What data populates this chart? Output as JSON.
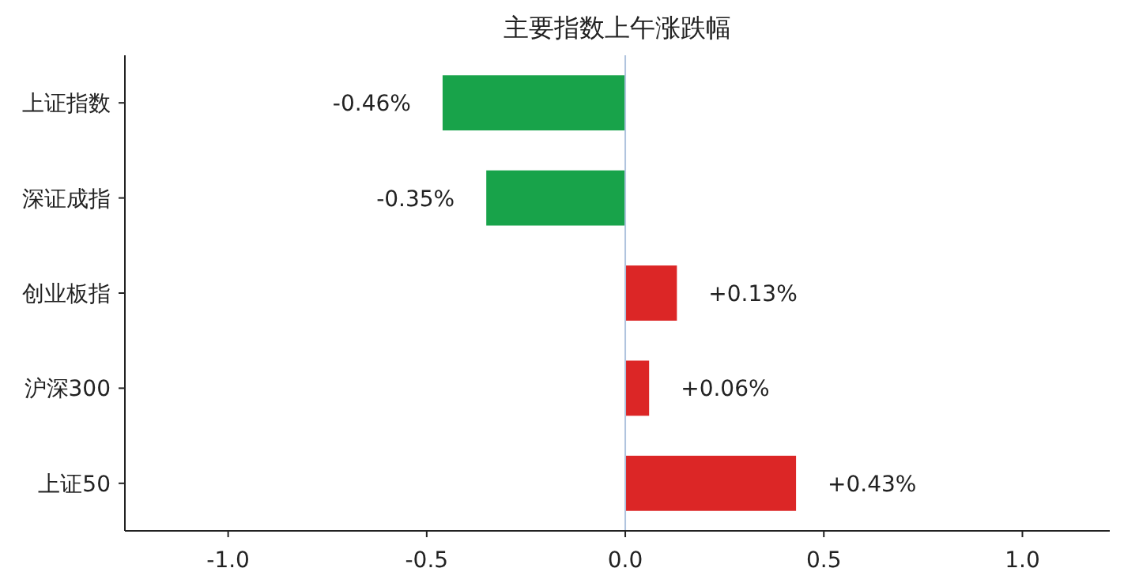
{
  "chart_data": {
    "type": "bar",
    "orientation": "horizontal",
    "title": "主要指数上午涨跌幅",
    "categories": [
      "上证指数",
      "深证成指",
      "创业板指",
      "沪深300",
      "上证50"
    ],
    "values": [
      -0.46,
      -0.35,
      0.13,
      0.06,
      0.43
    ],
    "colors": [
      "#18a34a",
      "#18a34a",
      "#dc2626",
      "#dc2626",
      "#dc2626"
    ],
    "value_labels": [
      "-0.46%",
      "-0.35%",
      "+0.13%",
      "+0.06%",
      "+0.43%"
    ],
    "xlim": [
      -1.26,
      1.22
    ],
    "xticks": [
      {
        "value": -1,
        "label": "-1.0"
      },
      {
        "value": -0.5,
        "label": "-0.5"
      },
      {
        "value": 0,
        "label": "0.0"
      },
      0.5,
      {
        "value": 1,
        "label": "1.0"
      }
    ],
    "ref_lines": [
      {
        "axis": "x",
        "value": 0,
        "color": "#b0c4de"
      }
    ]
  }
}
